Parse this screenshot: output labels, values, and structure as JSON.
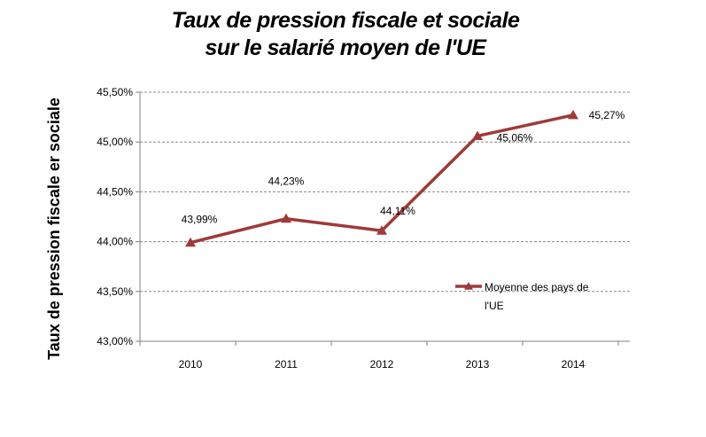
{
  "chart_data": {
    "type": "line",
    "title_line1": "Taux de pression fiscale et sociale",
    "title_line2": "sur le salarié moyen de l'UE",
    "xlabel": "",
    "ylabel": "Taux de pression fiscale er sociale",
    "categories": [
      "2010",
      "2011",
      "2012",
      "2013",
      "2014"
    ],
    "series": [
      {
        "name": "Moyenne des pays de l'UE",
        "legend_line1": "Moyenne des pays de",
        "legend_line2": "l'UE",
        "values": [
          43.99,
          44.23,
          44.11,
          45.06,
          45.27
        ],
        "labels": [
          "43,99%",
          "44,23%",
          "44,11%",
          "45,06%",
          "45,27%"
        ],
        "color": "#9e3a38",
        "marker": "triangle"
      }
    ],
    "ylim": [
      43.0,
      45.5
    ],
    "yticks": [
      {
        "value": 43.0,
        "label": "43,00%"
      },
      {
        "value": 43.5,
        "label": "43,50%"
      },
      {
        "value": 44.0,
        "label": "44,00%"
      },
      {
        "value": 44.5,
        "label": "44,50%"
      },
      {
        "value": 45.0,
        "label": "45,00%"
      },
      {
        "value": 45.5,
        "label": "45,50%"
      }
    ],
    "grid": true,
    "grid_style": "dashed",
    "legend_position": "inside-right"
  }
}
